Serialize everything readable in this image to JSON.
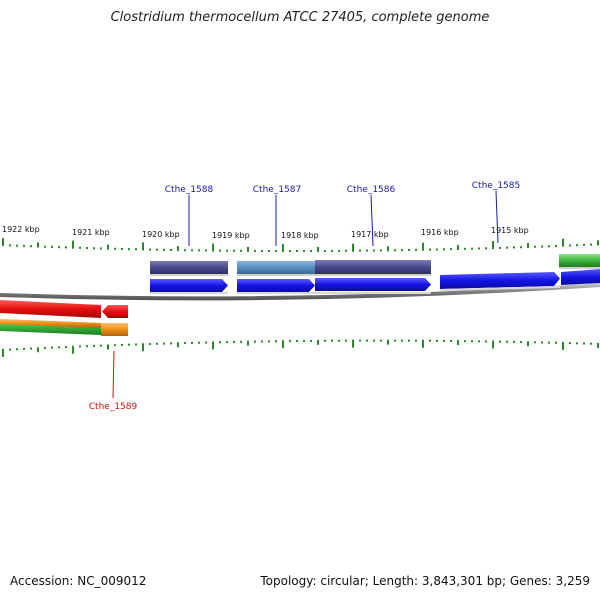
{
  "title": "Clostridium thermocellum ATCC 27405, complete genome",
  "accession": "Accession: NC_009012",
  "summary": "Topology: circular; Length: 3,843,301 bp; Genes: 3,259",
  "scale": {
    "unit": "kbp",
    "labels": [
      "1922 kbp",
      "1921 kbp",
      "1920 kbp",
      "1919 kbp",
      "1918 kbp",
      "1917 kbp",
      "1916 kbp",
      "1915 kbp"
    ]
  },
  "genes": [
    {
      "label": "Cthe_1588",
      "strand": "forward"
    },
    {
      "label": "Cthe_1587",
      "strand": "forward"
    },
    {
      "label": "Cthe_1586",
      "strand": "forward"
    },
    {
      "label": "Cthe_1585",
      "strand": "forward"
    },
    {
      "label": "Cthe_1589",
      "strand": "reverse"
    }
  ],
  "colors": {
    "forward_cds": "#1414e6",
    "reverse_cds": "#e60f0f",
    "forward_rna": "#3cb43c",
    "reverse_rna": "#f08c14",
    "feature_dark": "#4a4a8c",
    "feature_light": "#5b8fc0",
    "tick": "#2a8a2a",
    "backbone": "#808080",
    "label_forward": "#1a1aa8",
    "label_reverse": "#cc1111"
  }
}
